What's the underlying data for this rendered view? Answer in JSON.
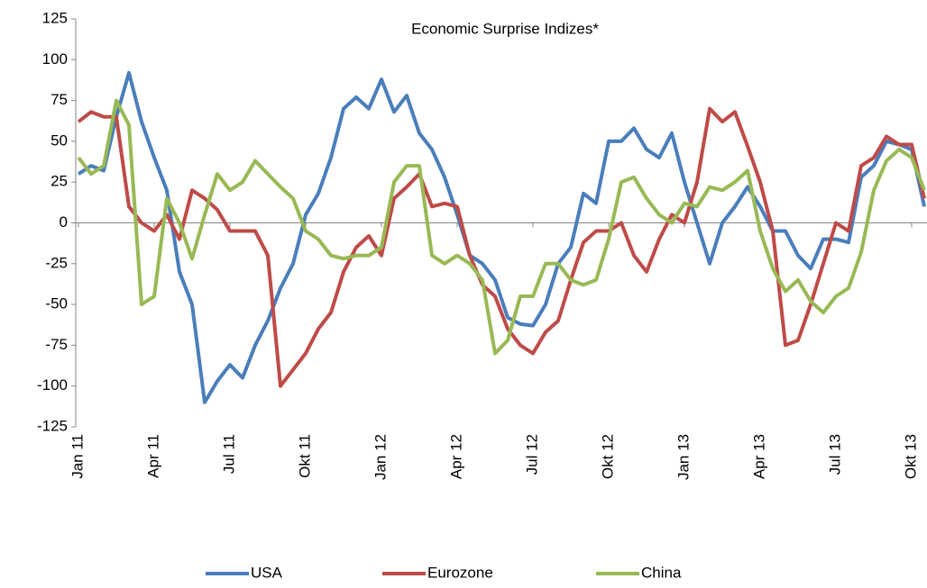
{
  "chart_data": {
    "type": "line",
    "title": "Economic Surprise Indizes*",
    "categories": [
      "Jan 11",
      null,
      null,
      null,
      null,
      null,
      "Apr 11",
      null,
      null,
      null,
      null,
      null,
      "Jul 11",
      null,
      null,
      null,
      null,
      null,
      "Okt 11",
      null,
      null,
      null,
      null,
      null,
      "Jan 12",
      null,
      null,
      null,
      null,
      null,
      "Apr 12",
      null,
      null,
      null,
      null,
      null,
      "Jul 12",
      null,
      null,
      null,
      null,
      null,
      "Okt 12",
      null,
      null,
      null,
      null,
      null,
      "Jan 13",
      null,
      null,
      null,
      null,
      null,
      "Apr 13",
      null,
      null,
      null,
      null,
      null,
      "Jul 13",
      null,
      null,
      null,
      null,
      null,
      "Okt 13",
      null
    ],
    "series": [
      {
        "name": "USA",
        "color": "#4a7ebb",
        "values": [
          30,
          35,
          32,
          65,
          92,
          62,
          40,
          20,
          -30,
          -50,
          -110,
          -97,
          -87,
          -95,
          -75,
          -60,
          -40,
          -25,
          5,
          18,
          40,
          70,
          77,
          70,
          88,
          68,
          78,
          55,
          45,
          28,
          5,
          -20,
          -25,
          -35,
          -58,
          -62,
          -63,
          -50,
          -25,
          -15,
          18,
          12,
          50,
          50,
          58,
          45,
          40,
          55,
          25,
          0,
          -25,
          0,
          10,
          22,
          10,
          -5,
          -5,
          -20,
          -28,
          -10,
          -10,
          -12,
          28,
          35,
          50,
          48,
          45,
          10
        ]
      },
      {
        "name": "Eurozone",
        "color": "#be4b48",
        "values": [
          62,
          68,
          65,
          65,
          10,
          0,
          -5,
          5,
          -10,
          20,
          15,
          8,
          -5,
          -5,
          -5,
          -20,
          -100,
          -90,
          -80,
          -65,
          -55,
          -30,
          -15,
          -8,
          -20,
          15,
          22,
          30,
          10,
          12,
          10,
          -20,
          -38,
          -45,
          -65,
          -75,
          -80,
          -67,
          -60,
          -35,
          -12,
          -5,
          -5,
          0,
          -20,
          -30,
          -10,
          5,
          0,
          25,
          70,
          62,
          68,
          47,
          25,
          -5,
          -75,
          -72,
          -50,
          -25,
          0,
          -5,
          35,
          40,
          53,
          48,
          48,
          15
        ]
      },
      {
        "name": "China",
        "color": "#98b954",
        "values": [
          40,
          30,
          35,
          75,
          60,
          -50,
          -45,
          15,
          0,
          -22,
          5,
          30,
          20,
          25,
          38,
          30,
          22,
          15,
          -5,
          -10,
          -20,
          -22,
          -20,
          -20,
          -15,
          25,
          35,
          35,
          -20,
          -25,
          -20,
          -25,
          -35,
          -80,
          -72,
          -45,
          -45,
          -25,
          -25,
          -35,
          -38,
          -35,
          -10,
          25,
          28,
          15,
          5,
          0,
          12,
          10,
          22,
          20,
          25,
          32,
          -5,
          -28,
          -42,
          -35,
          -48,
          -55,
          -45,
          -40,
          -18,
          20,
          38,
          45,
          40,
          20
        ]
      }
    ],
    "ylim": [
      -125,
      125
    ],
    "yticks": [
      -125,
      -100,
      -75,
      -50,
      -25,
      0,
      25,
      50,
      75,
      100,
      125
    ],
    "grid": false,
    "legend": "bottom"
  }
}
